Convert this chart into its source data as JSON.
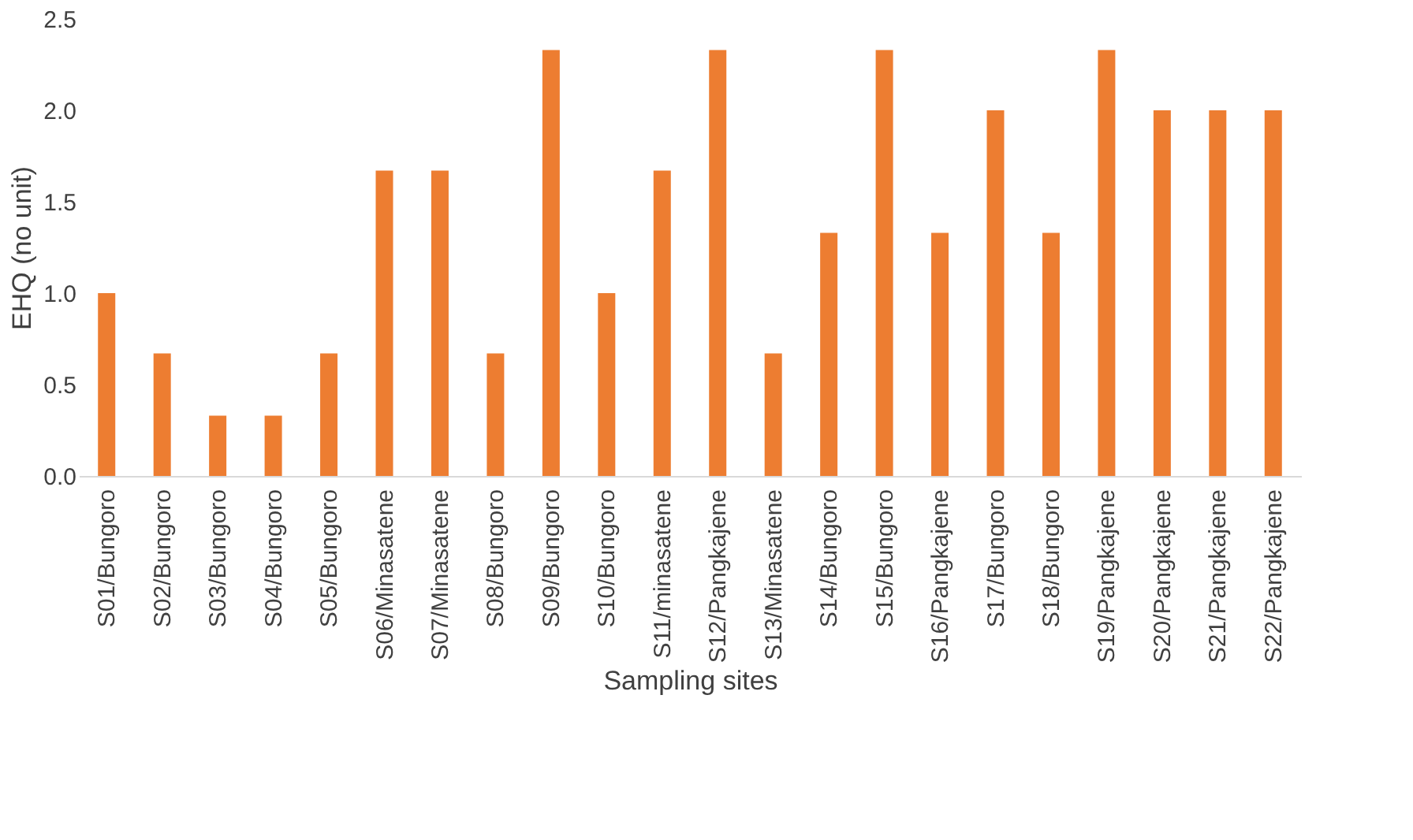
{
  "chart_data": {
    "type": "bar",
    "xlabel": "Sampling sites",
    "ylabel": "EHQ (no unit)",
    "categories": [
      "S01/Bungoro",
      "S02/Bungoro",
      "S03/Bungoro",
      "S04/Bungoro",
      "S05/Bungoro",
      "S06/Minasatene",
      "S07/Minasatene",
      "S08/Bungoro",
      "S09/Bungoro",
      "S10/Bungoro",
      "S11/minasatene",
      "S12/Pangkajene",
      "S13/Minasatene",
      "S14/Bungoro",
      "S15/Bungoro",
      "S16/Pangkajene",
      "S17/Bungoro",
      "S18/Bungoro",
      "S19/Pangkajene",
      "S20/Pangkajene",
      "S21/Pangkajene",
      "S22/Pangkajene"
    ],
    "values": [
      1.0,
      0.67,
      0.33,
      0.33,
      0.67,
      1.67,
      1.67,
      0.67,
      2.33,
      1.0,
      1.67,
      2.33,
      0.67,
      1.33,
      2.33,
      1.33,
      2.0,
      1.33,
      2.33,
      2.0,
      2.0,
      2.0
    ],
    "color": "#ed7d31",
    "ylim": [
      0,
      2.5
    ],
    "yticks": [
      {
        "value": 0,
        "label": "0.0"
      },
      {
        "value": 0.5,
        "label": "0.5"
      },
      {
        "value": 1,
        "label": "1.0"
      },
      {
        "value": 1.5,
        "label": "1.5"
      },
      {
        "value": 2,
        "label": "2.0"
      },
      {
        "value": 2.5,
        "label": "2.5"
      }
    ],
    "grid": false
  }
}
